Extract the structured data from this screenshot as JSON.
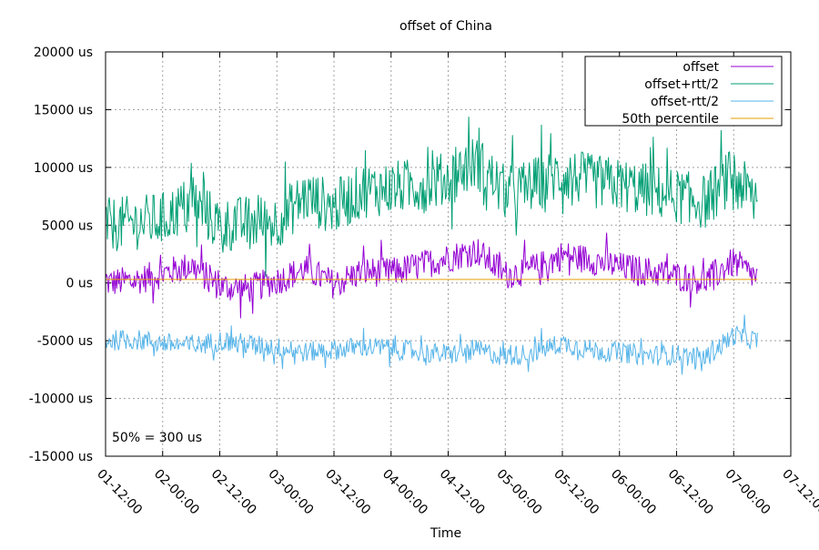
{
  "chart_data": {
    "type": "line",
    "title": "offset of China",
    "xlabel": "Time",
    "ylabel": "",
    "ylim": [
      -15000,
      20000
    ],
    "yticks": [
      -15000,
      -10000,
      -5000,
      0,
      5000,
      10000,
      15000,
      20000
    ],
    "ytick_labels": [
      "-15000 us",
      "-10000 us",
      "-5000 us",
      "0 us",
      "5000 us",
      "10000 us",
      "15000 us",
      "20000 us"
    ],
    "xlim": [
      "2023-01-01 12:00",
      "2023-01-07 12:00"
    ],
    "xticks": [
      "2023-01-01 12:00",
      "2023-01-02 00:00",
      "2023-01-02 12:00",
      "2023-01-03 00:00",
      "2023-01-03 12:00",
      "2023-01-04 00:00",
      "2023-01-04 12:00",
      "2023-01-05 00:00",
      "2023-01-05 12:00",
      "2023-01-06 00:00",
      "2023-01-06 12:00",
      "2023-01-07 00:00",
      "2023-01-07 12:00"
    ],
    "xtick_labels": [
      "01-12:00",
      "02-00:00",
      "02-12:00",
      "03-00:00",
      "03-12:00",
      "04-00:00",
      "04-12:00",
      "05-00:00",
      "05-12:00",
      "06-00:00",
      "06-12:00",
      "07-00:00",
      "07-12:00"
    ],
    "grid": true,
    "legend_position": "top-right",
    "annotation": "50% = 300 us",
    "series": [
      {
        "name": "offset",
        "color": "#9400d3",
        "x": [
          "2023-01-01 12:00",
          "2023-01-01 18:00",
          "2023-01-02 00:00",
          "2023-01-02 06:00",
          "2023-01-02 12:00",
          "2023-01-02 18:00",
          "2023-01-03 00:00",
          "2023-01-03 06:00",
          "2023-01-03 12:00",
          "2023-01-03 18:00",
          "2023-01-04 00:00",
          "2023-01-04 06:00",
          "2023-01-04 12:00",
          "2023-01-04 18:00",
          "2023-01-05 00:00",
          "2023-01-05 06:00",
          "2023-01-05 12:00",
          "2023-01-05 18:00",
          "2023-01-06 00:00",
          "2023-01-06 06:00",
          "2023-01-06 12:00",
          "2023-01-06 18:00",
          "2023-01-07 00:00",
          "2023-01-07 05:00"
        ],
        "values": [
          0,
          200,
          800,
          1500,
          -300,
          -500,
          200,
          1200,
          -100,
          1000,
          900,
          1500,
          2200,
          2800,
          700,
          1200,
          2400,
          2000,
          1400,
          1000,
          600,
          200,
          1800,
          400
        ]
      },
      {
        "name": "offset+rtt/2",
        "color": "#009e73",
        "x": [
          "2023-01-01 12:00",
          "2023-01-01 18:00",
          "2023-01-02 00:00",
          "2023-01-02 06:00",
          "2023-01-02 12:00",
          "2023-01-02 18:00",
          "2023-01-03 00:00",
          "2023-01-03 06:00",
          "2023-01-03 12:00",
          "2023-01-03 18:00",
          "2023-01-04 00:00",
          "2023-01-04 06:00",
          "2023-01-04 12:00",
          "2023-01-04 18:00",
          "2023-01-05 00:00",
          "2023-01-05 06:00",
          "2023-01-05 12:00",
          "2023-01-05 18:00",
          "2023-01-06 00:00",
          "2023-01-06 06:00",
          "2023-01-06 12:00",
          "2023-01-06 18:00",
          "2023-01-07 00:00",
          "2023-01-07 05:00"
        ],
        "values": [
          5000,
          5200,
          5500,
          7000,
          5000,
          5200,
          5300,
          7500,
          6500,
          8000,
          8200,
          8500,
          9000,
          10500,
          7800,
          8500,
          9500,
          8800,
          8500,
          8000,
          7500,
          7000,
          9500,
          6500
        ]
      },
      {
        "name": "offset-rtt/2",
        "color": "#56b4e9",
        "x": [
          "2023-01-01 12:00",
          "2023-01-01 18:00",
          "2023-01-02 00:00",
          "2023-01-02 06:00",
          "2023-01-02 12:00",
          "2023-01-02 18:00",
          "2023-01-03 00:00",
          "2023-01-03 06:00",
          "2023-01-03 12:00",
          "2023-01-03 18:00",
          "2023-01-04 00:00",
          "2023-01-04 06:00",
          "2023-01-04 12:00",
          "2023-01-04 18:00",
          "2023-01-05 00:00",
          "2023-01-05 06:00",
          "2023-01-05 12:00",
          "2023-01-05 18:00",
          "2023-01-06 00:00",
          "2023-01-06 06:00",
          "2023-01-06 12:00",
          "2023-01-06 18:00",
          "2023-01-07 00:00",
          "2023-01-07 05:00"
        ],
        "values": [
          -5000,
          -4900,
          -5200,
          -5500,
          -5000,
          -5300,
          -5600,
          -6000,
          -5800,
          -5500,
          -5700,
          -6000,
          -6200,
          -5800,
          -6400,
          -6000,
          -5200,
          -5800,
          -6000,
          -6300,
          -6200,
          -6500,
          -4500,
          -5000
        ]
      },
      {
        "name": "50th percentile",
        "color": "#e69f00",
        "x": [
          "2023-01-01 12:00",
          "2023-01-07 05:00"
        ],
        "values": [
          300,
          300
        ]
      }
    ]
  }
}
